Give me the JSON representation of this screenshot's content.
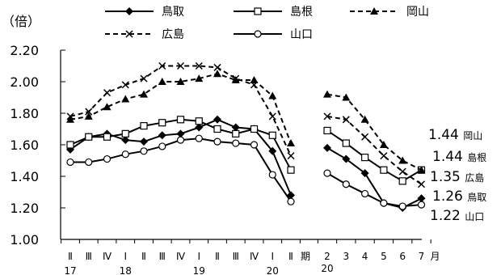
{
  "chart_data": {
    "type": "line",
    "ylabel": "（倍）",
    "ylim": [
      1.0,
      2.2
    ],
    "yticks": [
      "1.00",
      "1.20",
      "1.40",
      "1.60",
      "1.80",
      "2.00",
      "2.20"
    ],
    "grid": false,
    "legend_position": "top",
    "quarterly": {
      "labels": [
        "Ⅱ",
        "Ⅲ",
        "Ⅳ",
        "Ⅰ",
        "Ⅱ",
        "Ⅲ",
        "Ⅳ",
        "Ⅰ",
        "Ⅱ",
        "Ⅲ",
        "Ⅳ",
        "Ⅰ",
        "Ⅱ"
      ],
      "year_labels": [
        {
          "index": 0,
          "text": "17"
        },
        {
          "index": 3,
          "text": "18"
        },
        {
          "index": 7,
          "text": "19"
        },
        {
          "index": 11,
          "text": "20"
        }
      ],
      "suffix": "期"
    },
    "monthly": {
      "labels": [
        "2",
        "3",
        "4",
        "5",
        "6",
        "7"
      ],
      "year_label": "20",
      "suffix": "月"
    },
    "series": [
      {
        "name": "鳥取",
        "marker": "diamond",
        "dash": false,
        "quarterly": [
          1.57,
          1.65,
          1.67,
          1.63,
          1.62,
          1.66,
          1.67,
          1.71,
          1.76,
          1.71,
          1.7,
          1.56,
          1.28
        ],
        "monthly": [
          1.58,
          1.51,
          1.42,
          1.23,
          1.2,
          1.26
        ],
        "end_value": "1.26"
      },
      {
        "name": "島根",
        "marker": "square",
        "dash": false,
        "quarterly": [
          1.6,
          1.65,
          1.65,
          1.67,
          1.72,
          1.74,
          1.76,
          1.75,
          1.7,
          1.67,
          1.7,
          1.66,
          1.44
        ],
        "monthly": [
          1.69,
          1.61,
          1.52,
          1.44,
          1.37,
          1.44
        ],
        "end_value": "1.44"
      },
      {
        "name": "岡山",
        "marker": "triangle",
        "dash": true,
        "quarterly": [
          1.76,
          1.78,
          1.84,
          1.89,
          1.92,
          2.0,
          2.0,
          2.02,
          2.05,
          2.01,
          2.01,
          1.91,
          1.61
        ],
        "monthly": [
          1.92,
          1.9,
          1.76,
          1.6,
          1.5,
          1.44
        ],
        "end_value": "1.44"
      },
      {
        "name": "広島",
        "marker": "x",
        "dash": true,
        "quarterly": [
          1.78,
          1.81,
          1.93,
          1.98,
          2.02,
          2.1,
          2.1,
          2.1,
          2.09,
          2.02,
          1.98,
          1.78,
          1.53
        ],
        "monthly": [
          1.78,
          1.76,
          1.65,
          1.53,
          1.43,
          1.35
        ],
        "end_value": "1.35"
      },
      {
        "name": "山口",
        "marker": "circle",
        "dash": false,
        "quarterly": [
          1.49,
          1.49,
          1.51,
          1.54,
          1.56,
          1.59,
          1.63,
          1.64,
          1.62,
          1.61,
          1.6,
          1.41,
          1.24
        ],
        "monthly": [
          1.42,
          1.35,
          1.29,
          1.23,
          1.21,
          1.22
        ],
        "end_value": "1.22"
      }
    ],
    "end_labels_order": [
      "岡山",
      "島根",
      "広島",
      "鳥取",
      "山口"
    ]
  }
}
